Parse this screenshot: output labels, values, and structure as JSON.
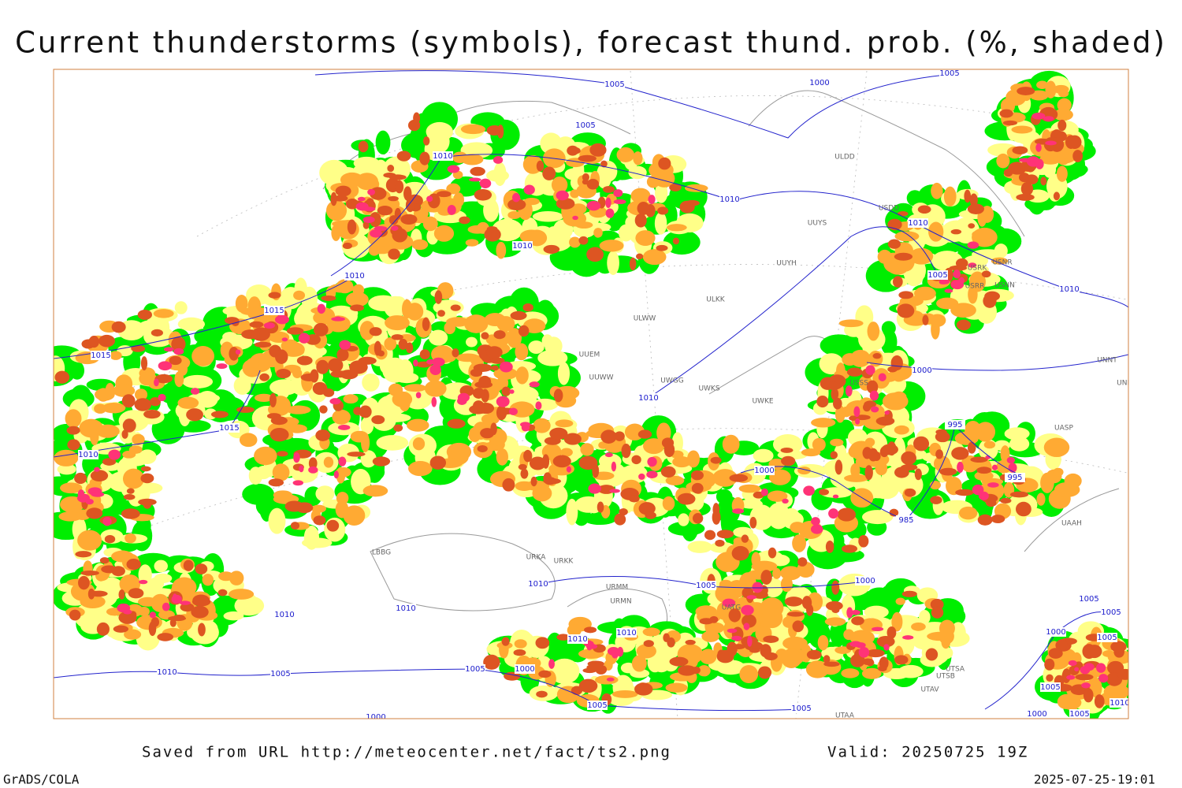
{
  "header": {
    "title": "Current thunderstorms (symbols), forecast thund. prob. (%, shaded)"
  },
  "map": {
    "isobar_labels": [
      "1005",
      "1000",
      "1005",
      "1005",
      "1010",
      "1010",
      "1010",
      "1010",
      "1010",
      "1005",
      "1010",
      "1015",
      "1015",
      "1000",
      "1010",
      "1015",
      "995",
      "1010",
      "1000",
      "995",
      "985",
      "1000",
      "1005",
      "1010",
      "1010",
      "1005",
      "1005",
      "1010",
      "1010",
      "1010",
      "1000",
      "1005",
      "1010",
      "1005",
      "1005",
      "1000",
      "1005",
      "1010",
      "1005",
      "1005",
      "1000",
      "1000",
      "1005"
    ],
    "station_labels": [
      "ULDD",
      "UUYS",
      "USDD",
      "UUYH",
      "ULKK",
      "ULWW",
      "USRK",
      "USNR",
      "USRR",
      "USNN",
      "UNNT",
      "UNBB",
      "UASP",
      "UAAH",
      "UWGG",
      "UWKS",
      "UWKE",
      "USSS",
      "URMM",
      "URMN",
      "UATG",
      "UUWW",
      "UUEM",
      "UTSA",
      "UTSB",
      "UTAV",
      "UTAA",
      "URKK",
      "URKA",
      "LBBG"
    ]
  },
  "footer": {
    "source": "Saved from URL http://meteocenter.net/fact/ts2.png",
    "valid": "Valid: 20250725 19Z",
    "software": "GrADS/COLA",
    "timestamp": "2025-07-25-19:01"
  }
}
